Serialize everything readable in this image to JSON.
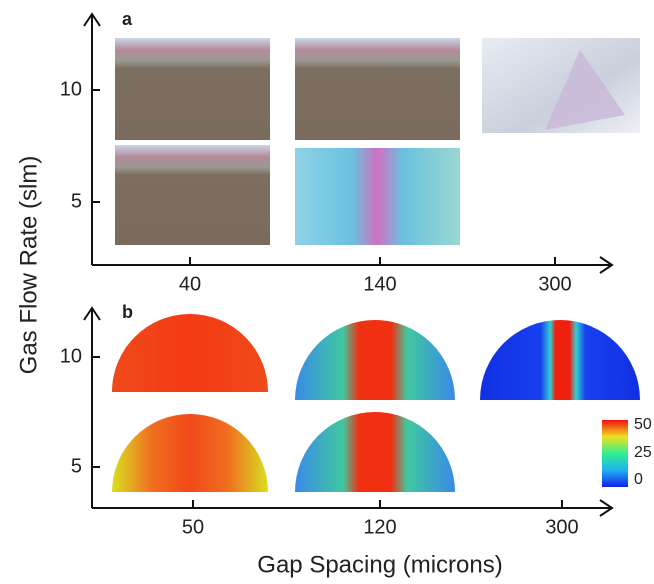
{
  "y_axis_label": "Gas Flow Rate (slm)",
  "x_axis_label": "Gap Spacing (microns)",
  "panel_a": {
    "label": "a",
    "y_ticks": [
      "10",
      "5"
    ],
    "x_ticks": [
      "40",
      "140",
      "300"
    ]
  },
  "panel_b": {
    "label": "b",
    "y_ticks": [
      "10",
      "5"
    ],
    "x_ticks": [
      "50",
      "120",
      "300"
    ],
    "colorbar_ticks": [
      "50",
      "25",
      "0"
    ]
  }
}
